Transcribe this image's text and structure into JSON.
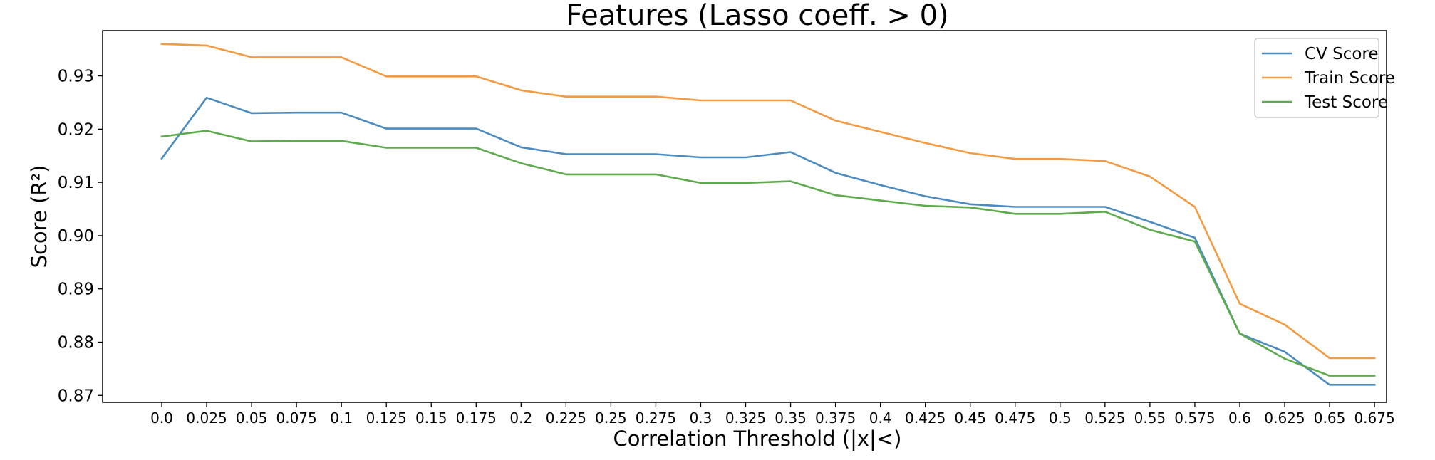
{
  "chart_data": {
    "type": "line",
    "title": "Features (Lasso coeff. > 0)",
    "xlabel": "Correlation Threshold (|x|<)",
    "ylabel": "Score (R²)",
    "categories": [
      "0.0",
      "0.025",
      "0.05",
      "0.075",
      "0.1",
      "0.125",
      "0.15",
      "0.175",
      "0.2",
      "0.225",
      "0.25",
      "0.275",
      "0.3",
      "0.325",
      "0.35",
      "0.375",
      "0.4",
      "0.425",
      "0.45",
      "0.475",
      "0.5",
      "0.525",
      "0.55",
      "0.575",
      "0.6",
      "0.625",
      "0.65",
      "0.675"
    ],
    "yticks": [
      "0.87",
      "0.88",
      "0.89",
      "0.90",
      "0.91",
      "0.92",
      "0.93"
    ],
    "ylim": [
      0.8687,
      0.9385
    ],
    "legend_position": "top-right",
    "grid": false,
    "series": [
      {
        "name": "CV Score",
        "color": "#4c8bbf",
        "values": [
          0.9145,
          0.9259,
          0.923,
          0.9231,
          0.9231,
          0.9201,
          0.9201,
          0.9201,
          0.9166,
          0.9153,
          0.9153,
          0.9153,
          0.9147,
          0.9147,
          0.9157,
          0.9118,
          0.9095,
          0.9074,
          0.9059,
          0.9054,
          0.9054,
          0.9054,
          0.9026,
          0.8996,
          0.8816,
          0.8782,
          0.872,
          0.872
        ]
      },
      {
        "name": "Train Score",
        "color": "#f39b42",
        "values": [
          0.936,
          0.9357,
          0.9335,
          0.9335,
          0.9335,
          0.9299,
          0.9299,
          0.9299,
          0.9273,
          0.9261,
          0.9261,
          0.9261,
          0.9254,
          0.9254,
          0.9254,
          0.9216,
          0.9195,
          0.9174,
          0.9155,
          0.9144,
          0.9144,
          0.914,
          0.9111,
          0.9054,
          0.8872,
          0.8833,
          0.877,
          0.877
        ]
      },
      {
        "name": "Test Score",
        "color": "#5eab4e",
        "values": [
          0.9186,
          0.9197,
          0.9177,
          0.9178,
          0.9178,
          0.9165,
          0.9165,
          0.9165,
          0.9136,
          0.9115,
          0.9115,
          0.9115,
          0.9099,
          0.9099,
          0.9102,
          0.9076,
          0.9066,
          0.9056,
          0.9053,
          0.9041,
          0.9041,
          0.9045,
          0.9011,
          0.8989,
          0.8816,
          0.8769,
          0.8737,
          0.8737
        ]
      }
    ]
  }
}
